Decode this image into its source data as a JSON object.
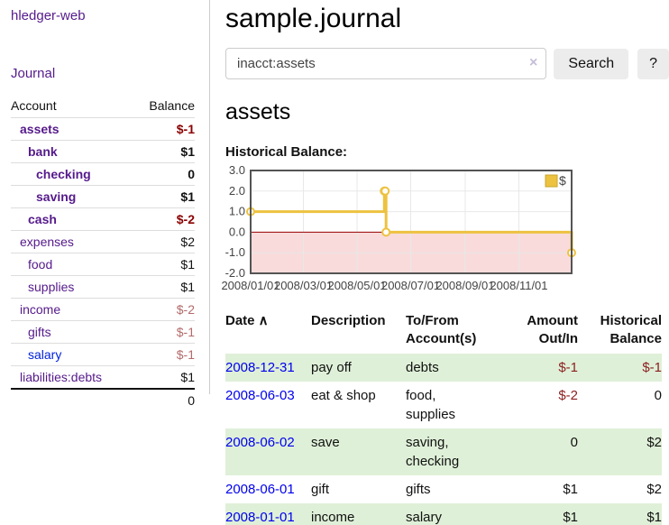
{
  "colors": {
    "link_purple": "#551a8b",
    "link_blue": "#0000ee",
    "negative_strong": "#8b0000",
    "negative_soft": "#b36a6a",
    "negative_txn": "#8b1f1f",
    "stripe_green": "#dff0d8",
    "chart_gold": "#edc240",
    "chart_gold_border": "#c9a62e",
    "chart_zero_line": "#990000",
    "chart_negative_fill": "#f9dbdb",
    "chart_grid": "#e8e8e8",
    "chart_border": "#545454"
  },
  "sidebar": {
    "brand": "hledger-web",
    "journal_link": "Journal",
    "accounts": {
      "col_account": "Account",
      "col_balance": "Balance",
      "rows": [
        {
          "name": "assets",
          "indent": 1,
          "bold": true,
          "balance": "$-1",
          "negative": true
        },
        {
          "name": "bank",
          "indent": 2,
          "bold": true,
          "balance": "$1",
          "negative": false
        },
        {
          "name": "checking",
          "indent": 3,
          "bold": true,
          "balance": "0",
          "negative": false
        },
        {
          "name": "saving",
          "indent": 3,
          "bold": true,
          "balance": "$1",
          "negative": false
        },
        {
          "name": "cash",
          "indent": 2,
          "bold": true,
          "balance": "$-2",
          "negative": true
        },
        {
          "name": "expenses",
          "indent": 1,
          "bold": false,
          "balance": "$2",
          "negative": false
        },
        {
          "name": "food",
          "indent": 2,
          "bold": false,
          "balance": "$1",
          "negative": false
        },
        {
          "name": "supplies",
          "indent": 2,
          "bold": false,
          "balance": "$1",
          "negative": false
        },
        {
          "name": "income",
          "indent": 1,
          "bold": false,
          "balance": "$-2",
          "negative": true
        },
        {
          "name": "gifts",
          "indent": 2,
          "bold": false,
          "balance": "$-1",
          "negative": true
        },
        {
          "name": "salary",
          "indent": 2,
          "bold": false,
          "balance": "$-1",
          "negative": true,
          "link_color": "blue"
        },
        {
          "name": "liabilities:debts",
          "indent": 1,
          "bold": false,
          "balance": "$1",
          "negative": false
        }
      ],
      "total": "0"
    }
  },
  "main": {
    "title": "sample.journal",
    "search": {
      "value": "inacct:assets",
      "clear_icon": "×",
      "button": "Search",
      "help_button": "?"
    },
    "heading": "assets",
    "chart_title": "Historical Balance:"
  },
  "chart_data": {
    "type": "line",
    "step": true,
    "title": "Historical Balance",
    "series": [
      {
        "name": "$",
        "color": "#edc240",
        "points": [
          {
            "date": "2008-01-01",
            "value": 1
          },
          {
            "date": "2008-06-01",
            "value": 2
          },
          {
            "date": "2008-06-02",
            "value": 2
          },
          {
            "date": "2008-06-03",
            "value": 0
          },
          {
            "date": "2008-12-31",
            "value": -1
          }
        ]
      }
    ],
    "x_range": [
      "2008-01-01",
      "2008-12-31"
    ],
    "x_ticks": [
      "2008/01/01",
      "2008/03/01",
      "2008/05/01",
      "2008/07/01",
      "2008/09/01",
      "2008/11/01"
    ],
    "y_ticks": [
      "3.0",
      "2.0",
      "1.0",
      "0.0",
      "-1.0",
      "-2.0"
    ],
    "ylim": [
      -2,
      3
    ],
    "grid": true,
    "legend": {
      "label": "$",
      "position": "top-right"
    },
    "negative_region_shaded": true,
    "zero_line": true
  },
  "transactions": {
    "headers": [
      {
        "label": "Date",
        "sort": "∧",
        "align": "left"
      },
      {
        "label": "Description",
        "align": "left"
      },
      {
        "label": "To/From Account(s)",
        "align": "left"
      },
      {
        "label": "Amount Out/In",
        "align": "right"
      },
      {
        "label": "Historical Balance",
        "align": "right"
      }
    ],
    "rows": [
      {
        "date": "2008-12-31",
        "description": "pay off",
        "accounts": "debts",
        "amount": "$-1",
        "amount_negative": true,
        "balance": "$-1",
        "balance_negative": true,
        "striped": true
      },
      {
        "date": "2008-06-03",
        "description": "eat & shop",
        "accounts": "food, supplies",
        "amount": "$-2",
        "amount_negative": true,
        "balance": "0",
        "balance_negative": false,
        "striped": false
      },
      {
        "date": "2008-06-02",
        "description": "save",
        "accounts": "saving, checking",
        "amount": "0",
        "amount_negative": false,
        "balance": "$2",
        "balance_negative": false,
        "striped": true
      },
      {
        "date": "2008-06-01",
        "description": "gift",
        "accounts": "gifts",
        "amount": "$1",
        "amount_negative": false,
        "balance": "$2",
        "balance_negative": false,
        "striped": false
      },
      {
        "date": "2008-01-01",
        "description": "income",
        "accounts": "salary",
        "amount": "$1",
        "amount_negative": false,
        "balance": "$1",
        "balance_negative": false,
        "striped": true
      }
    ]
  }
}
